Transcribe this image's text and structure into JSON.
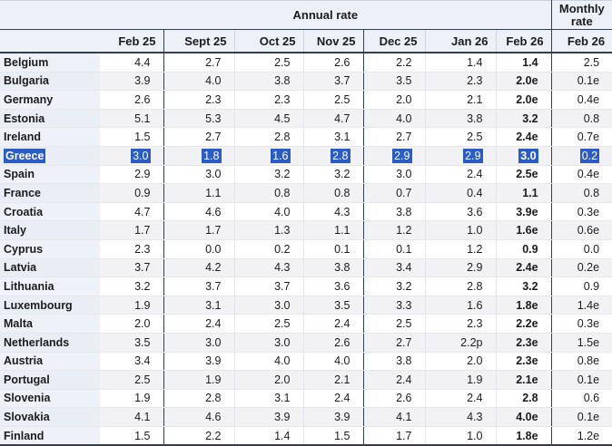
{
  "colors": {
    "selection_highlight": "#2b5cc5",
    "header_background": "#ecf0f7",
    "group_border": "#343d4a",
    "alt_row_background": "#f2f2f4"
  },
  "table": {
    "group_headers": {
      "annual": "Annual rate",
      "monthly": "Monthly rate"
    },
    "columns": [
      "Feb 25",
      "Sept 25",
      "Oct 25",
      "Nov 25",
      "Dec 25",
      "Jan 26",
      "Feb 26"
    ],
    "monthly_column": "Feb 26",
    "rows": [
      {
        "country": "Belgium",
        "selected": false,
        "values": [
          "4.4",
          "2.7",
          "2.5",
          "2.6",
          "2.2",
          "1.4",
          "1.4",
          "2.5"
        ]
      },
      {
        "country": "Bulgaria",
        "selected": false,
        "values": [
          "3.9",
          "4.0",
          "3.8",
          "3.7",
          "3.5",
          "2.3",
          "2.0e",
          "0.1e"
        ]
      },
      {
        "country": "Germany",
        "selected": false,
        "values": [
          "2.6",
          "2.3",
          "2.3",
          "2.5",
          "2.0",
          "2.1",
          "2.0e",
          "0.4e"
        ]
      },
      {
        "country": "Estonia",
        "selected": false,
        "values": [
          "5.1",
          "5.3",
          "4.5",
          "4.7",
          "4.0",
          "3.8",
          "3.2",
          "0.8"
        ]
      },
      {
        "country": "Ireland",
        "selected": false,
        "values": [
          "1.5",
          "2.7",
          "2.8",
          "3.1",
          "2.7",
          "2.5",
          "2.4e",
          "0.7e"
        ]
      },
      {
        "country": "Greece",
        "selected": true,
        "values": [
          "3.0",
          "1.8",
          "1.6",
          "2.8",
          "2.9",
          "2.9",
          "3.0",
          "0.2"
        ]
      },
      {
        "country": "Spain",
        "selected": false,
        "values": [
          "2.9",
          "3.0",
          "3.2",
          "3.2",
          "3.0",
          "2.4",
          "2.5e",
          "0.4e"
        ]
      },
      {
        "country": "France",
        "selected": false,
        "values": [
          "0.9",
          "1.1",
          "0.8",
          "0.8",
          "0.7",
          "0.4",
          "1.1",
          "0.8"
        ]
      },
      {
        "country": "Croatia",
        "selected": false,
        "values": [
          "4.7",
          "4.6",
          "4.0",
          "4.3",
          "3.8",
          "3.6",
          "3.9e",
          "0.3e"
        ]
      },
      {
        "country": "Italy",
        "selected": false,
        "values": [
          "1.7",
          "1.7",
          "1.3",
          "1.1",
          "1.2",
          "1.0",
          "1.6e",
          "0.6e"
        ]
      },
      {
        "country": "Cyprus",
        "selected": false,
        "values": [
          "2.3",
          "0.0",
          "0.2",
          "0.1",
          "0.1",
          "1.2",
          "0.9",
          "0.0"
        ]
      },
      {
        "country": "Latvia",
        "selected": false,
        "values": [
          "3.7",
          "4.2",
          "4.3",
          "3.8",
          "3.4",
          "2.9",
          "2.4e",
          "0.2e"
        ]
      },
      {
        "country": "Lithuania",
        "selected": false,
        "values": [
          "3.2",
          "3.7",
          "3.7",
          "3.6",
          "3.2",
          "2.8",
          "3.2",
          "0.9"
        ]
      },
      {
        "country": "Luxembourg",
        "selected": false,
        "values": [
          "1.9",
          "3.1",
          "3.0",
          "3.5",
          "3.3",
          "1.6",
          "1.8e",
          "1.4e"
        ]
      },
      {
        "country": "Malta",
        "selected": false,
        "values": [
          "2.0",
          "2.4",
          "2.5",
          "2.4",
          "2.5",
          "2.3",
          "2.2e",
          "0.3e"
        ]
      },
      {
        "country": "Netherlands",
        "selected": false,
        "values": [
          "3.5",
          "3.0",
          "3.0",
          "2.6",
          "2.7",
          "2.2p",
          "2.3e",
          "1.5e"
        ]
      },
      {
        "country": "Austria",
        "selected": false,
        "values": [
          "3.4",
          "3.9",
          "4.0",
          "4.0",
          "3.8",
          "2.0",
          "2.3e",
          "0.8e"
        ]
      },
      {
        "country": "Portugal",
        "selected": false,
        "values": [
          "2.5",
          "1.9",
          "2.0",
          "2.1",
          "2.4",
          "1.9",
          "2.1e",
          "0.1e"
        ]
      },
      {
        "country": "Slovenia",
        "selected": false,
        "values": [
          "1.9",
          "2.8",
          "3.1",
          "2.4",
          "2.6",
          "2.4",
          "2.8",
          "0.6"
        ]
      },
      {
        "country": "Slovakia",
        "selected": false,
        "values": [
          "4.1",
          "4.6",
          "3.9",
          "3.9",
          "4.1",
          "4.3",
          "4.0e",
          "0.1e"
        ]
      },
      {
        "country": "Finland",
        "selected": false,
        "values": [
          "1.5",
          "2.2",
          "1.4",
          "1.5",
          "1.7",
          "1.0",
          "1.8e",
          "1.2e"
        ]
      }
    ]
  }
}
